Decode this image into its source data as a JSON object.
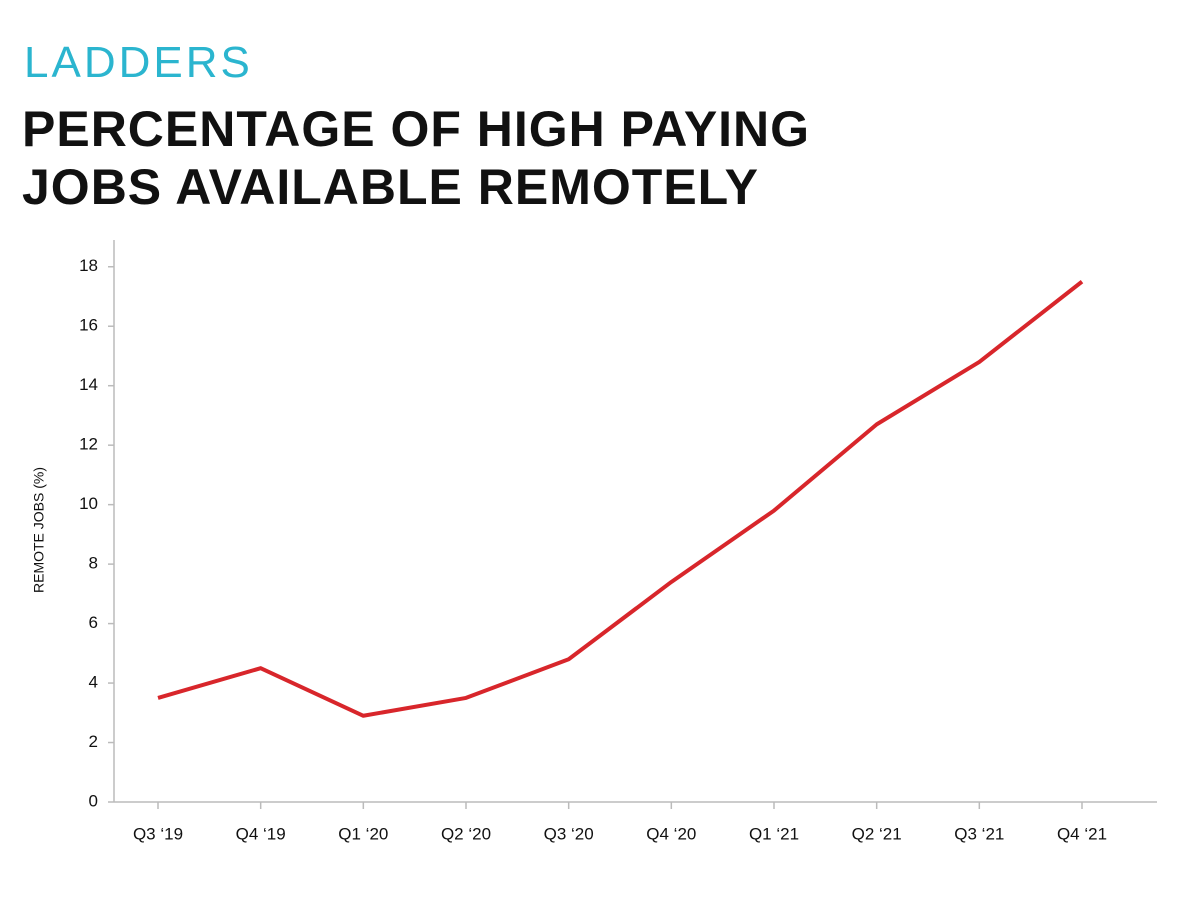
{
  "brand": "LADDERS",
  "chart_data": {
    "type": "line",
    "title": "PERCENTAGE OF HIGH PAYING JOBS AVAILABLE REMOTELY",
    "y_label": "REMOTE JOBS (%)",
    "categories": [
      "Q3 ‘19",
      "Q4 ‘19",
      "Q1 ‘20",
      "Q2 ‘20",
      "Q3 ‘20",
      "Q4 ‘20",
      "Q1 ‘21",
      "Q2 ‘21",
      "Q3 ‘21",
      "Q4 ‘21"
    ],
    "values": [
      3.5,
      4.5,
      2.9,
      3.5,
      4.8,
      7.4,
      9.8,
      12.7,
      14.8,
      17.5
    ],
    "color": "#d8262b",
    "ylim": [
      0,
      18.9
    ],
    "yticks": [
      0,
      2,
      4,
      6,
      8,
      10,
      12,
      14,
      16,
      18
    ]
  }
}
